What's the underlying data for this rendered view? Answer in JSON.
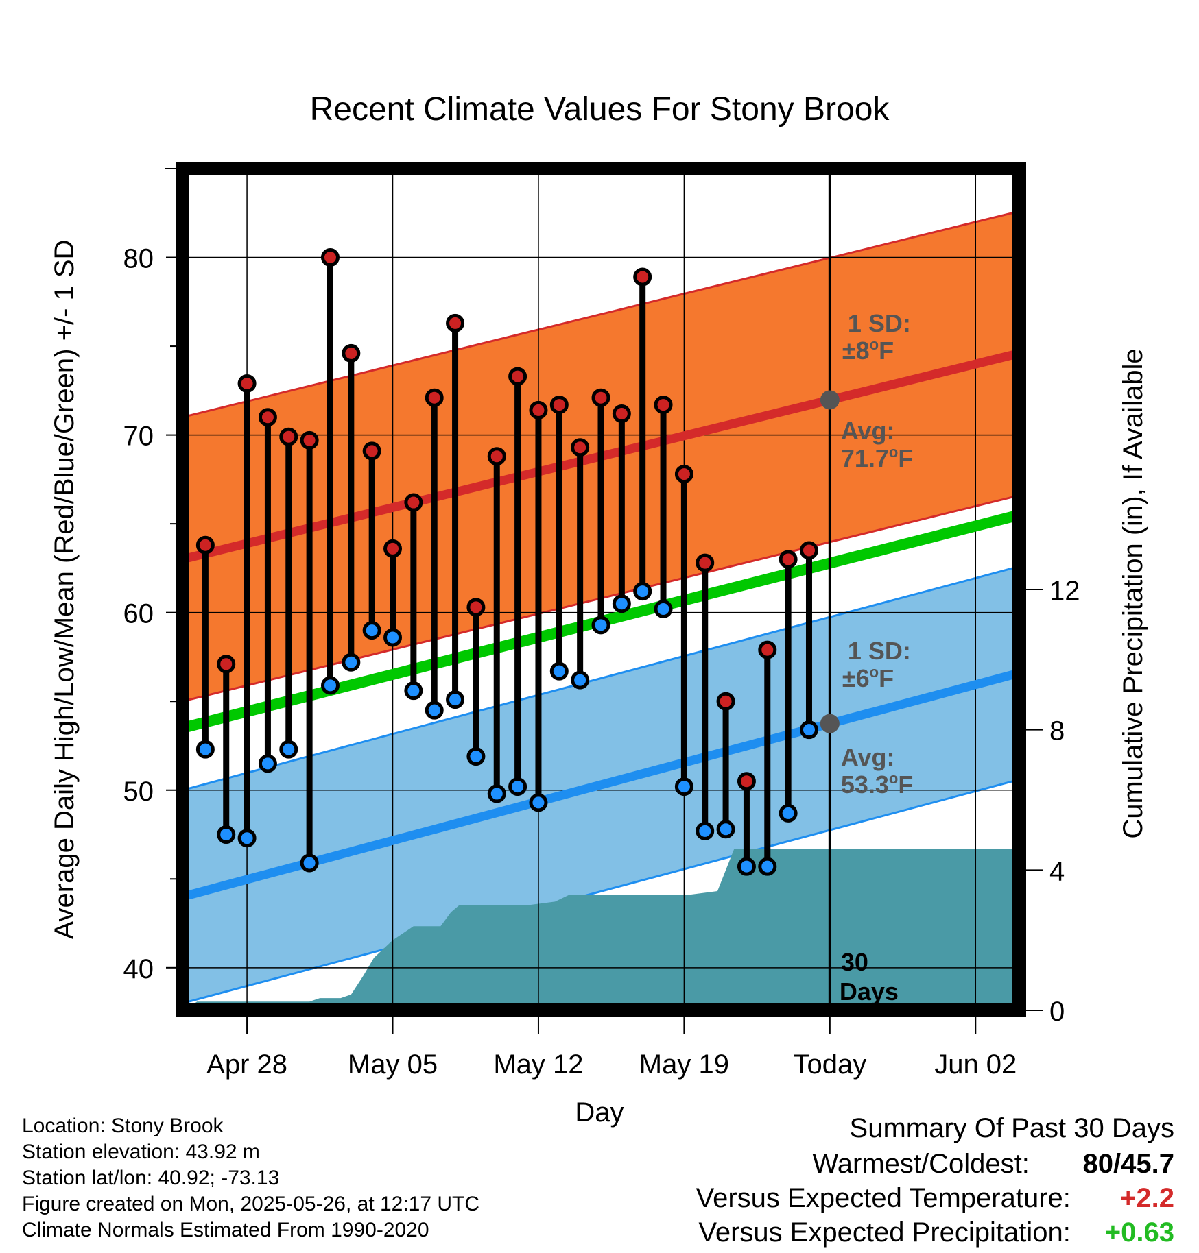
{
  "chart_data": {
    "type": "line",
    "title": "Recent Climate Values For Stony Brook",
    "xlabel": "Day",
    "ylabel": "Average Daily High/Low/Mean (Red/Blue/Green) +/- 1 SD",
    "y2label": "Cumulative Precipitation (in), If Available",
    "ylim": [
      37.6,
      85
    ],
    "y2lim": [
      0,
      24
    ],
    "y_ticks": [
      "40",
      "50",
      "60",
      "70",
      "80"
    ],
    "y2_ticks": [
      "0",
      "4",
      "8",
      "12"
    ],
    "x_tick_labels": [
      "Apr 28",
      "May 05",
      "May 12",
      "May 19",
      "Today",
      "Jun 02"
    ],
    "x_tick_days": [
      3,
      10,
      17,
      24,
      31,
      38
    ],
    "x_domain_days": [
      -0.1,
      40.1
    ],
    "days": [
      1,
      2,
      3,
      4,
      5,
      6,
      7,
      8,
      9,
      10,
      11,
      12,
      13,
      14,
      15,
      16,
      17,
      18,
      19,
      20,
      21,
      22,
      23,
      24,
      25,
      26,
      27,
      28,
      29,
      30
    ],
    "highs": [
      63.8,
      57.1,
      72.9,
      71.0,
      69.9,
      69.7,
      80.0,
      74.6,
      69.1,
      63.6,
      66.2,
      72.1,
      76.3,
      60.3,
      68.8,
      73.3,
      71.4,
      71.7,
      69.3,
      72.1,
      71.2,
      78.9,
      71.7,
      67.8,
      62.8,
      55.0,
      50.5,
      57.9,
      63.0,
      63.5
    ],
    "lows": [
      52.3,
      47.5,
      47.3,
      51.5,
      52.3,
      45.9,
      55.9,
      57.2,
      59.0,
      58.6,
      55.6,
      54.5,
      55.1,
      51.9,
      49.8,
      50.2,
      49.3,
      56.7,
      56.2,
      59.3,
      60.5,
      61.2,
      60.2,
      50.2,
      47.7,
      47.8,
      45.7,
      45.7,
      48.7,
      53.4
    ],
    "normal_high": [
      63.0,
      74.6
    ],
    "normal_high_sd": 8,
    "normal_low": [
      44.0,
      56.6
    ],
    "normal_low_sd": 6,
    "normal_mean": [
      53.5,
      65.5
    ],
    "precip_cumulative": [
      [
        0.0,
        0.0
      ],
      [
        0.6,
        0.25
      ],
      [
        2.5,
        0.25
      ],
      [
        6.0,
        0.25
      ],
      [
        6.5,
        0.35
      ],
      [
        7.5,
        0.35
      ],
      [
        8.0,
        0.45
      ],
      [
        8.6,
        1.0
      ],
      [
        9.1,
        1.5
      ],
      [
        10.0,
        2.0
      ],
      [
        11.0,
        2.4
      ],
      [
        12.3,
        2.4
      ],
      [
        12.8,
        2.8
      ],
      [
        13.2,
        3.0
      ],
      [
        16.5,
        3.0
      ],
      [
        17.8,
        3.1
      ],
      [
        18.5,
        3.3
      ],
      [
        22.5,
        3.3
      ],
      [
        24.3,
        3.3
      ],
      [
        25.6,
        3.4
      ],
      [
        26.4,
        4.6
      ],
      [
        31.0,
        4.6
      ],
      [
        40.1,
        4.6
      ]
    ],
    "today_day": 31,
    "annotations": {
      "high_sd_l1": "1 SD:",
      "high_sd_l2": "±8",
      "high_avg_l1": "Avg:",
      "high_avg_l2": "71.7",
      "low_sd_l1": "1 SD:",
      "low_sd_l2": "±6",
      "low_avg_l1": "Avg:",
      "low_avg_l2": "53.3",
      "unit_deg": "o",
      "unit_f": "F",
      "days_l1": "30",
      "days_l2": "Days"
    },
    "colors": {
      "high_band": "#f5782e",
      "high_line": "#d42a2a",
      "low_band": "#82c0e6",
      "low_line": "#1e8ef0",
      "mean_line": "#00c800",
      "precip": "#4a9aa6",
      "high_dot": "#cc2222",
      "low_dot": "#1e90ff",
      "annotation_text": "#555555"
    }
  },
  "info": {
    "location": "Location: Stony Brook",
    "elevation": "Station elevation: 43.92 m",
    "latlon": "Station lat/lon: 40.92; -73.13",
    "created": "Figure created on Mon, 2025-05-26, at 12:17 UTC",
    "normals": "Climate Normals Estimated From 1990-2020"
  },
  "summary": {
    "title": "Summary Of Past 30 Days",
    "warmest_label": "Warmest/Coldest:",
    "warmest_value": "80/45.7",
    "temp_label": "Versus Expected Temperature:",
    "temp_value": "+2.2",
    "temp_color": "#d42a2a",
    "precip_label": "Versus Expected Precipitation:",
    "precip_value": "+0.63",
    "precip_color": "#22bb22"
  }
}
